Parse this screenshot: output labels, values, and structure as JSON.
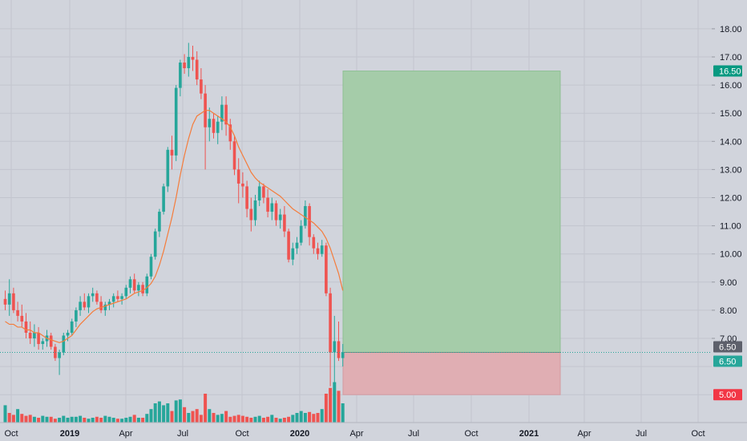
{
  "chart_data": {
    "type": "candlestick",
    "interval": "weekly",
    "y_axis": {
      "min": 4.5,
      "max": 18.5,
      "ticks": [
        5,
        6,
        7,
        8,
        9,
        10,
        11,
        12,
        13,
        14,
        15,
        16,
        17,
        18
      ],
      "labels": [
        "7.00",
        "8.00",
        "9.00",
        "10.00",
        "11.00",
        "12.00",
        "13.00",
        "14.00",
        "15.00",
        "16.00",
        "17.00",
        "18.00"
      ],
      "label_values": [
        7,
        8,
        9,
        10,
        11,
        12,
        13,
        14,
        15,
        16,
        17,
        18
      ]
    },
    "x_axis": {
      "ticks": [
        {
          "label": "Oct",
          "x": 14,
          "bold": false
        },
        {
          "label": "2019",
          "x": 87,
          "bold": true
        },
        {
          "label": "Apr",
          "x": 157,
          "bold": false
        },
        {
          "label": "Jul",
          "x": 228,
          "bold": false
        },
        {
          "label": "Oct",
          "x": 302,
          "bold": false
        },
        {
          "label": "2020",
          "x": 374,
          "bold": true
        },
        {
          "label": "Apr",
          "x": 445,
          "bold": false
        },
        {
          "label": "Jul",
          "x": 516,
          "bold": false
        },
        {
          "label": "Oct",
          "x": 588,
          "bold": false
        },
        {
          "label": "2021",
          "x": 660,
          "bold": true
        },
        {
          "label": "Apr",
          "x": 729,
          "bold": false
        },
        {
          "label": "Jul",
          "x": 800,
          "bold": false
        },
        {
          "label": "Oct",
          "x": 871,
          "bold": false
        }
      ]
    },
    "grid": true,
    "colors": {
      "up": "#26a69a",
      "down": "#ef5350",
      "ma": "#f57c3b",
      "background": "#d1d4dc",
      "grid": "#c2c5ce",
      "profit_zone": "#a5cca9",
      "loss_zone": "#e0aeb3",
      "current_line": "#26a69a"
    },
    "candles": [
      [
        8.4,
        8.7,
        8.0,
        8.2
      ],
      [
        8.2,
        9.1,
        7.8,
        8.6
      ],
      [
        8.6,
        8.8,
        7.9,
        8.0
      ],
      [
        8.0,
        8.3,
        7.6,
        7.8
      ],
      [
        7.8,
        8.2,
        7.4,
        7.6
      ],
      [
        7.6,
        7.9,
        7.0,
        7.2
      ],
      [
        7.2,
        7.6,
        6.8,
        7.0
      ],
      [
        7.0,
        7.5,
        6.7,
        7.2
      ],
      [
        7.2,
        7.4,
        6.6,
        6.8
      ],
      [
        6.8,
        7.0,
        6.6,
        6.9
      ],
      [
        6.9,
        7.3,
        6.7,
        7.1
      ],
      [
        7.1,
        7.2,
        6.6,
        6.7
      ],
      [
        6.7,
        6.8,
        6.2,
        6.3
      ],
      [
        6.3,
        6.6,
        5.7,
        6.5
      ],
      [
        6.5,
        7.2,
        6.4,
        7.1
      ],
      [
        7.1,
        7.3,
        6.9,
        7.2
      ],
      [
        7.2,
        7.7,
        7.1,
        7.6
      ],
      [
        7.6,
        8.1,
        7.4,
        8.0
      ],
      [
        8.0,
        8.5,
        7.8,
        8.3
      ],
      [
        8.3,
        8.6,
        8.0,
        8.1
      ],
      [
        8.1,
        8.6,
        7.9,
        8.5
      ],
      [
        8.5,
        8.8,
        8.3,
        8.6
      ],
      [
        8.6,
        8.7,
        8.2,
        8.3
      ],
      [
        8.3,
        8.5,
        7.9,
        8.0
      ],
      [
        8.0,
        8.3,
        7.8,
        8.2
      ],
      [
        8.2,
        8.4,
        8.0,
        8.3
      ],
      [
        8.3,
        8.6,
        8.1,
        8.5
      ],
      [
        8.5,
        8.7,
        8.3,
        8.4
      ],
      [
        8.4,
        8.6,
        8.2,
        8.5
      ],
      [
        8.5,
        8.9,
        8.4,
        8.8
      ],
      [
        8.8,
        9.2,
        8.6,
        9.1
      ],
      [
        9.1,
        9.3,
        8.6,
        8.7
      ],
      [
        8.7,
        9.0,
        8.5,
        8.9
      ],
      [
        8.9,
        9.0,
        8.5,
        8.6
      ],
      [
        8.6,
        9.3,
        8.5,
        9.2
      ],
      [
        9.2,
        10.0,
        9.1,
        9.9
      ],
      [
        9.9,
        10.9,
        9.8,
        10.8
      ],
      [
        10.8,
        11.6,
        10.6,
        11.5
      ],
      [
        11.5,
        12.5,
        11.4,
        12.4
      ],
      [
        12.4,
        13.8,
        12.2,
        13.7
      ],
      [
        13.7,
        14.2,
        13.0,
        13.5
      ],
      [
        13.5,
        16.0,
        13.3,
        15.9
      ],
      [
        15.9,
        16.9,
        15.6,
        16.8
      ],
      [
        16.8,
        17.1,
        16.4,
        16.6
      ],
      [
        16.6,
        17.5,
        16.3,
        17.0
      ],
      [
        17.0,
        17.4,
        16.5,
        16.9
      ],
      [
        16.9,
        17.2,
        16.0,
        16.2
      ],
      [
        16.2,
        16.6,
        15.5,
        15.7
      ],
      [
        15.7,
        16.0,
        13.0,
        14.5
      ],
      [
        14.5,
        15.2,
        14.0,
        14.8
      ],
      [
        14.8,
        15.0,
        14.1,
        14.3
      ],
      [
        14.3,
        14.9,
        13.9,
        14.7
      ],
      [
        14.7,
        15.6,
        14.4,
        15.3
      ],
      [
        15.3,
        15.6,
        14.2,
        14.6
      ],
      [
        14.6,
        14.8,
        13.7,
        14.0
      ],
      [
        14.0,
        14.2,
        12.8,
        13.0
      ],
      [
        13.0,
        13.4,
        11.8,
        12.5
      ],
      [
        12.5,
        12.9,
        12.0,
        12.4
      ],
      [
        12.4,
        12.6,
        11.3,
        11.6
      ],
      [
        11.6,
        12.0,
        10.8,
        11.2
      ],
      [
        11.2,
        12.1,
        11.0,
        11.9
      ],
      [
        11.9,
        12.6,
        11.7,
        12.4
      ],
      [
        12.4,
        12.5,
        11.8,
        12.0
      ],
      [
        12.0,
        12.3,
        11.3,
        11.5
      ],
      [
        11.5,
        12.0,
        11.2,
        11.8
      ],
      [
        11.8,
        11.9,
        11.0,
        11.2
      ],
      [
        11.2,
        11.6,
        10.9,
        11.4
      ],
      [
        11.4,
        11.7,
        10.6,
        10.8
      ],
      [
        10.8,
        10.9,
        9.7,
        9.8
      ],
      [
        9.8,
        10.4,
        9.6,
        10.2
      ],
      [
        10.2,
        10.6,
        10.0,
        10.4
      ],
      [
        10.4,
        11.2,
        10.3,
        11.0
      ],
      [
        11.0,
        11.9,
        10.9,
        11.7
      ],
      [
        11.7,
        11.8,
        10.3,
        10.6
      ],
      [
        10.6,
        10.7,
        10.0,
        10.2
      ],
      [
        10.2,
        10.4,
        9.8,
        10.0
      ],
      [
        10.0,
        10.5,
        9.9,
        10.3
      ],
      [
        10.3,
        10.4,
        8.5,
        8.6
      ],
      [
        8.6,
        8.8,
        5.3,
        6.5
      ],
      [
        6.5,
        7.8,
        5.3,
        6.9
      ],
      [
        6.9,
        7.6,
        6.2,
        6.3
      ],
      [
        6.3,
        6.8,
        6.0,
        6.5
      ]
    ],
    "volumes": [
      18,
      10,
      8,
      14,
      9,
      7,
      8,
      6,
      5,
      7,
      6,
      6,
      4,
      5,
      7,
      5,
      6,
      6,
      7,
      5,
      4,
      5,
      6,
      5,
      7,
      6,
      5,
      4,
      4,
      5,
      6,
      8,
      5,
      5,
      9,
      14,
      20,
      22,
      18,
      20,
      12,
      23,
      24,
      16,
      10,
      12,
      14,
      8,
      30,
      14,
      10,
      8,
      9,
      12,
      6,
      7,
      8,
      7,
      6,
      5,
      6,
      7,
      5,
      6,
      8,
      5,
      4,
      5,
      6,
      8,
      10,
      12,
      10,
      11,
      9,
      10,
      14,
      30,
      36,
      42,
      33,
      20
    ],
    "volume_colors": [
      "up",
      "down",
      "down",
      "up",
      "down",
      "down",
      "down",
      "up",
      "down",
      "up",
      "up",
      "down",
      "down",
      "up",
      "up",
      "up",
      "up",
      "up",
      "up",
      "down",
      "up",
      "up",
      "down",
      "down",
      "up",
      "up",
      "up",
      "down",
      "up",
      "up",
      "up",
      "down",
      "up",
      "down",
      "up",
      "up",
      "up",
      "up",
      "up",
      "up",
      "down",
      "up",
      "up",
      "down",
      "up",
      "down",
      "down",
      "down",
      "down",
      "up",
      "down",
      "up",
      "up",
      "down",
      "down",
      "down",
      "down",
      "down",
      "down",
      "down",
      "up",
      "up",
      "down",
      "down",
      "up",
      "down",
      "up",
      "down",
      "down",
      "up",
      "up",
      "up",
      "up",
      "down",
      "down",
      "down",
      "up",
      "down",
      "down",
      "up",
      "down",
      "up"
    ],
    "moving_average": [
      7.6,
      7.5,
      7.5,
      7.4,
      7.4,
      7.3,
      7.3,
      7.2,
      7.2,
      7.1,
      7.0,
      6.95,
      6.9,
      6.85,
      6.9,
      7.0,
      7.1,
      7.3,
      7.5,
      7.65,
      7.8,
      7.95,
      8.05,
      8.1,
      8.15,
      8.2,
      8.25,
      8.3,
      8.35,
      8.4,
      8.5,
      8.6,
      8.65,
      8.7,
      8.8,
      8.95,
      9.2,
      9.6,
      10.1,
      10.7,
      11.3,
      12.0,
      12.8,
      13.5,
      14.1,
      14.6,
      14.9,
      15.0,
      15.1,
      15.1,
      15.0,
      14.9,
      14.8,
      14.7,
      14.5,
      14.2,
      13.8,
      13.5,
      13.2,
      12.9,
      12.7,
      12.55,
      12.45,
      12.35,
      12.25,
      12.15,
      12.05,
      11.9,
      11.75,
      11.6,
      11.5,
      11.4,
      11.3,
      11.2,
      11.1,
      10.95,
      10.8,
      10.55,
      10.2,
      9.75,
      9.3,
      8.7
    ],
    "position": {
      "target": 16.5,
      "entry": 6.5,
      "stop": 5.0
    },
    "price_tags": [
      {
        "label": "16.50",
        "value": 16.5,
        "color": "#089981"
      },
      {
        "label": "6.50",
        "value": 6.5,
        "color": "#5d606b",
        "offset": -7
      },
      {
        "label": "6.50",
        "value": 6.5,
        "color": "#26a69a",
        "offset": 11
      },
      {
        "label": "5.00",
        "value": 5.0,
        "color": "#f23645"
      }
    ]
  }
}
